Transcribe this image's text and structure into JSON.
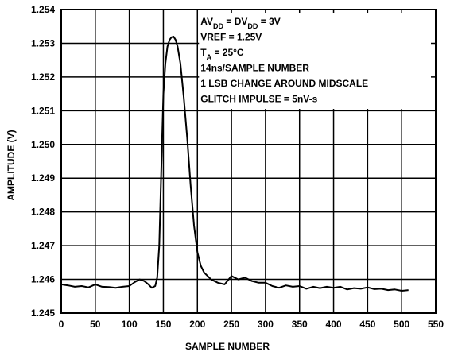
{
  "chart_data": {
    "type": "line",
    "xlabel": "SAMPLE NUMBER",
    "ylabel": "AMPLITUDE (V)",
    "xlim": [
      0,
      550
    ],
    "ylim": [
      1.245,
      1.254
    ],
    "xticks": [
      0,
      50,
      100,
      150,
      200,
      250,
      300,
      350,
      400,
      450,
      500,
      550
    ],
    "yticks": [
      "1.245",
      "1.246",
      "1.247",
      "1.248",
      "1.249",
      "1.250",
      "1.251",
      "1.252",
      "1.253",
      "1.254"
    ],
    "grid": true,
    "annotation_lines": [
      {
        "parts": [
          {
            "t": "AV"
          },
          {
            "t": "DD",
            "sub": true
          },
          {
            "t": " = DV"
          },
          {
            "t": "DD",
            "sub": true
          },
          {
            "t": " = 3V"
          }
        ]
      },
      {
        "parts": [
          {
            "t": "VREF = 1.25V"
          }
        ]
      },
      {
        "parts": [
          {
            "t": "T"
          },
          {
            "t": "A",
            "sub": true
          },
          {
            "t": " = 25°C"
          }
        ]
      },
      {
        "parts": [
          {
            "t": "14ns/SAMPLE NUMBER"
          }
        ]
      },
      {
        "parts": [
          {
            "t": "1 LSB CHANGE AROUND MIDSCALE"
          }
        ]
      },
      {
        "parts": [
          {
            "t": "GLITCH IMPULSE = 5nV-s"
          }
        ]
      }
    ],
    "series": [
      {
        "color": "#000000",
        "points": [
          [
            0,
            1.24585
          ],
          [
            10,
            1.24582
          ],
          [
            20,
            1.24578
          ],
          [
            30,
            1.2458
          ],
          [
            40,
            1.24576
          ],
          [
            50,
            1.24585
          ],
          [
            60,
            1.24578
          ],
          [
            70,
            1.24577
          ],
          [
            80,
            1.24575
          ],
          [
            90,
            1.24578
          ],
          [
            100,
            1.2458
          ],
          [
            108,
            1.24592
          ],
          [
            115,
            1.246
          ],
          [
            122,
            1.24595
          ],
          [
            128,
            1.24585
          ],
          [
            133,
            1.24575
          ],
          [
            138,
            1.2458
          ],
          [
            141,
            1.24605
          ],
          [
            144,
            1.247
          ],
          [
            146,
            1.2485
          ],
          [
            148,
            1.25
          ],
          [
            150,
            1.2515
          ],
          [
            153,
            1.2524
          ],
          [
            156,
            1.2529
          ],
          [
            159,
            1.2531
          ],
          [
            162,
            1.25318
          ],
          [
            165,
            1.2532
          ],
          [
            168,
            1.2531
          ],
          [
            171,
            1.2529
          ],
          [
            175,
            1.2524
          ],
          [
            180,
            1.2514
          ],
          [
            185,
            1.2502
          ],
          [
            190,
            1.2488
          ],
          [
            195,
            1.2476
          ],
          [
            200,
            1.2468
          ],
          [
            205,
            1.2464
          ],
          [
            210,
            1.2462
          ],
          [
            220,
            1.246
          ],
          [
            230,
            1.2459
          ],
          [
            240,
            1.24585
          ],
          [
            250,
            1.2461
          ],
          [
            260,
            1.246
          ],
          [
            270,
            1.24605
          ],
          [
            280,
            1.24595
          ],
          [
            290,
            1.2459
          ],
          [
            300,
            1.2459
          ],
          [
            310,
            1.2458
          ],
          [
            320,
            1.24575
          ],
          [
            330,
            1.24582
          ],
          [
            340,
            1.24578
          ],
          [
            350,
            1.2458
          ],
          [
            360,
            1.24572
          ],
          [
            370,
            1.24578
          ],
          [
            380,
            1.24574
          ],
          [
            390,
            1.24578
          ],
          [
            400,
            1.24575
          ],
          [
            410,
            1.24578
          ],
          [
            420,
            1.2457
          ],
          [
            430,
            1.24574
          ],
          [
            440,
            1.24572
          ],
          [
            450,
            1.24576
          ],
          [
            460,
            1.24571
          ],
          [
            470,
            1.24572
          ],
          [
            480,
            1.24568
          ],
          [
            490,
            1.2457
          ],
          [
            500,
            1.24566
          ],
          [
            510,
            1.24568
          ]
        ]
      }
    ]
  }
}
